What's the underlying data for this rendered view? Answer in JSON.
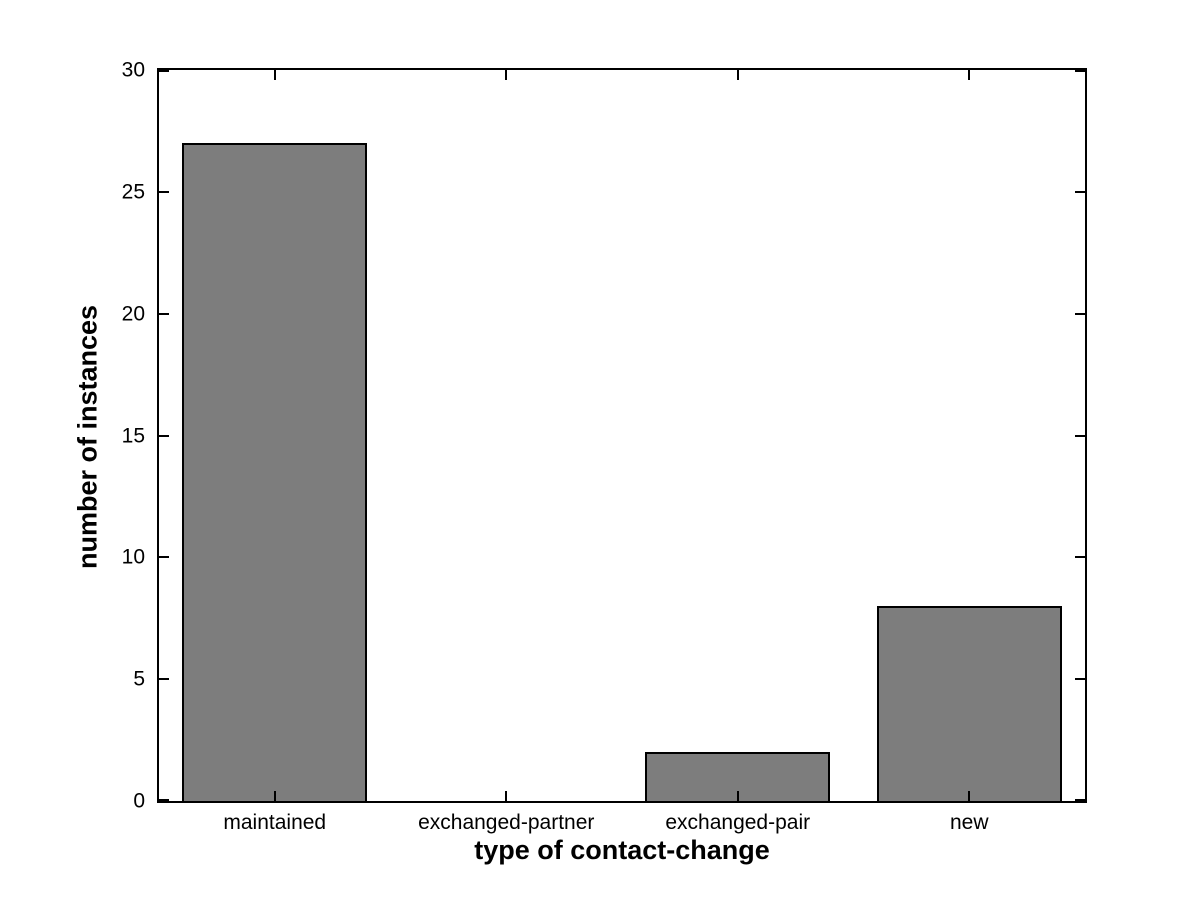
{
  "figure": {
    "background": "#ffffff",
    "axis_color": "#000000",
    "text_color": "#000000"
  },
  "chart_data": {
    "type": "bar",
    "title": "",
    "xlabel": "type of contact-change",
    "ylabel": "number of instances",
    "categories": [
      "maintained",
      "exchanged-partner",
      "exchanged-pair",
      "new"
    ],
    "values": [
      27,
      0,
      2,
      8
    ],
    "ylim": [
      0,
      30
    ],
    "yticks": [
      0,
      5,
      10,
      15,
      20,
      25,
      30
    ],
    "bar_fill_color": "#7d7d7d",
    "bar_edge_color": "#000000",
    "bar_width_fraction": 0.8,
    "grid": false,
    "legend_position": "none",
    "tick_direction": "in",
    "box": true
  }
}
